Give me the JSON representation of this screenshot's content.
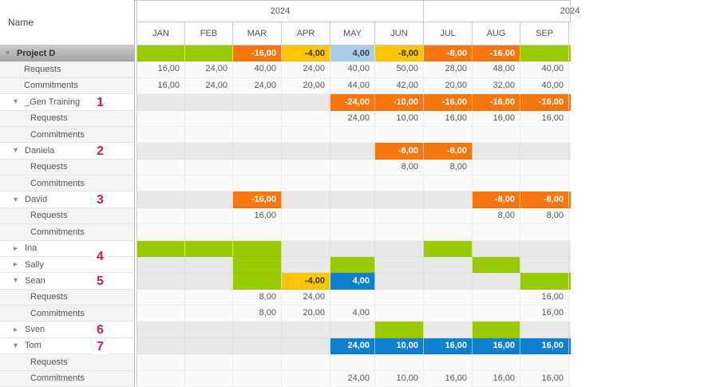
{
  "header": {
    "name_column_label": "Name",
    "year_groups": [
      {
        "label": "2024"
      },
      {
        "label": "2024"
      }
    ],
    "months": [
      "JAN",
      "FEB",
      "MAR",
      "APR",
      "MAY",
      "JUN",
      "JUL",
      "AUG",
      "SEP"
    ]
  },
  "palette": {
    "green": "#9ACA00",
    "orange": "#F7770E",
    "yellow": "#FDC505",
    "lightblue": "#A9CDEA",
    "blue": "#0F7FD0",
    "band_empty": "#E9E9E9"
  },
  "annotation_color": "#D21658",
  "rows": [
    {
      "type": "band",
      "name": "Project D",
      "level": 0,
      "expanded": true,
      "selected": true,
      "cells": [
        {
          "c": "green"
        },
        {
          "c": "green"
        },
        {
          "c": "orange",
          "v": "-16,00"
        },
        {
          "c": "yellow",
          "v": "-4,00"
        },
        {
          "c": "lightblue",
          "v": "4,00"
        },
        {
          "c": "yellow",
          "v": "-8,00"
        },
        {
          "c": "orange",
          "v": "-8,00"
        },
        {
          "c": "orange",
          "v": "-16,00"
        },
        {
          "c": "green"
        }
      ]
    },
    {
      "type": "sub",
      "name": "Requests",
      "level": 0,
      "values": [
        "16,00",
        "24,00",
        "40,00",
        "24,00",
        "40,00",
        "50,00",
        "28,00",
        "48,00",
        "40,00"
      ]
    },
    {
      "type": "sub",
      "name": "Commitments",
      "level": 0,
      "values": [
        "16,00",
        "24,00",
        "24,00",
        "20,00",
        "44,00",
        "42,00",
        "20,00",
        "32,00",
        "40,00"
      ]
    },
    {
      "type": "band",
      "name": "_Gen Training",
      "level": 1,
      "expanded": true,
      "cells": [
        null,
        null,
        null,
        null,
        {
          "c": "orange",
          "v": "-24,00"
        },
        {
          "c": "orange",
          "v": "-10,00"
        },
        {
          "c": "orange",
          "v": "-16,00"
        },
        {
          "c": "orange",
          "v": "-16,00"
        },
        {
          "c": "orange",
          "v": "-16,00"
        }
      ]
    },
    {
      "type": "sub",
      "name": "Requests",
      "level": 1,
      "values": [
        "",
        "",
        "",
        "",
        "24,00",
        "10,00",
        "16,00",
        "16,00",
        "16,00"
      ]
    },
    {
      "type": "sub",
      "name": "Commitments",
      "level": 1,
      "values": [
        "",
        "",
        "",
        "",
        "",
        "",
        "",
        "",
        ""
      ]
    },
    {
      "type": "band",
      "name": "Daniela",
      "level": 1,
      "expanded": true,
      "cells": [
        null,
        null,
        null,
        null,
        null,
        {
          "c": "orange",
          "v": "-8,00"
        },
        {
          "c": "orange",
          "v": "-8,00"
        },
        null,
        null
      ]
    },
    {
      "type": "sub",
      "name": "Requests",
      "level": 1,
      "values": [
        "",
        "",
        "",
        "",
        "",
        "8,00",
        "8,00",
        "",
        ""
      ]
    },
    {
      "type": "sub",
      "name": "Commitments",
      "level": 1,
      "values": [
        "",
        "",
        "",
        "",
        "",
        "",
        "",
        "",
        ""
      ]
    },
    {
      "type": "band",
      "name": "David",
      "level": 1,
      "expanded": true,
      "cells": [
        null,
        null,
        {
          "c": "orange",
          "v": "-16,00"
        },
        null,
        null,
        null,
        null,
        {
          "c": "orange",
          "v": "-8,00"
        },
        {
          "c": "orange",
          "v": "-8,00"
        }
      ]
    },
    {
      "type": "sub",
      "name": "Requests",
      "level": 1,
      "values": [
        "",
        "",
        "16,00",
        "",
        "",
        "",
        "",
        "8,00",
        "8,00"
      ]
    },
    {
      "type": "sub",
      "name": "Commitments",
      "level": 1,
      "values": [
        "",
        "",
        "",
        "",
        "",
        "",
        "",
        "",
        ""
      ]
    },
    {
      "type": "band",
      "name": "Ina",
      "level": 1,
      "expanded": false,
      "cells": [
        {
          "c": "green"
        },
        {
          "c": "green"
        },
        {
          "c": "green"
        },
        null,
        null,
        null,
        {
          "c": "green"
        },
        null,
        null
      ]
    },
    {
      "type": "band",
      "name": "Sally",
      "level": 1,
      "expanded": false,
      "cells": [
        null,
        null,
        {
          "c": "green"
        },
        null,
        {
          "c": "green"
        },
        null,
        null,
        {
          "c": "green"
        },
        null
      ]
    },
    {
      "type": "band",
      "name": "Sean",
      "level": 1,
      "expanded": true,
      "cells": [
        null,
        null,
        {
          "c": "green"
        },
        {
          "c": "yellow",
          "v": "-4,00"
        },
        {
          "c": "blue",
          "v": "4,00"
        },
        null,
        null,
        null,
        {
          "c": "green"
        }
      ]
    },
    {
      "type": "sub",
      "name": "Requests",
      "level": 1,
      "values": [
        "",
        "",
        "8,00",
        "24,00",
        "",
        "",
        "",
        "",
        "16,00"
      ]
    },
    {
      "type": "sub",
      "name": "Commitments",
      "level": 1,
      "values": [
        "",
        "",
        "8,00",
        "20,00",
        "4,00",
        "",
        "",
        "",
        "16,00"
      ]
    },
    {
      "type": "band",
      "name": "Sven",
      "level": 1,
      "expanded": false,
      "cells": [
        null,
        null,
        null,
        null,
        null,
        {
          "c": "green"
        },
        null,
        {
          "c": "green"
        },
        null
      ]
    },
    {
      "type": "band",
      "name": "Tom",
      "level": 1,
      "expanded": true,
      "cells": [
        null,
        null,
        null,
        null,
        {
          "c": "blue",
          "v": "24,00"
        },
        {
          "c": "blue",
          "v": "10,00"
        },
        {
          "c": "blue",
          "v": "16,00"
        },
        {
          "c": "blue",
          "v": "16,00"
        },
        {
          "c": "blue",
          "v": "16,00"
        }
      ]
    },
    {
      "type": "sub",
      "name": "Requests",
      "level": 1,
      "values": [
        "",
        "",
        "",
        "",
        "",
        "",
        "",
        "",
        ""
      ]
    },
    {
      "type": "sub",
      "name": "Commitments",
      "level": 1,
      "values": [
        "",
        "",
        "",
        "",
        "24,00",
        "10,00",
        "16,00",
        "16,00",
        "16,00"
      ]
    }
  ],
  "annotations": [
    {
      "label": "1",
      "at_row": 3
    },
    {
      "label": "2",
      "at_row": 6
    },
    {
      "label": "3",
      "at_row": 9
    },
    {
      "label": "4",
      "at_row": 12.5
    },
    {
      "label": "5",
      "at_row": 14
    },
    {
      "label": "6",
      "at_row": 17
    },
    {
      "label": "7",
      "at_row": 18
    }
  ]
}
